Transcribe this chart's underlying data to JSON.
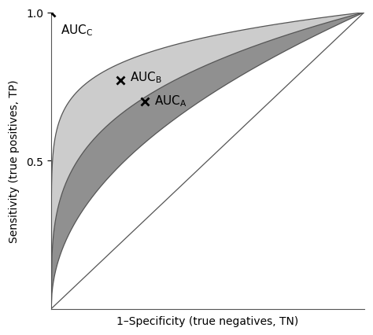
{
  "xlabel": "1–Specificity (true negatives, TN)",
  "ylabel": "Sensitivity (true positives, TP)",
  "yticks": [
    0.5,
    1.0
  ],
  "xlim": [
    0,
    1
  ],
  "ylim": [
    0,
    1
  ],
  "color_dark_gray": "#909090",
  "color_light_gray": "#cccccc",
  "color_line": "#555555",
  "marker_C": [
    0.0,
    1.0
  ],
  "marker_B": [
    0.22,
    0.77
  ],
  "marker_A": [
    0.3,
    0.7
  ],
  "background_color": "#ffffff"
}
